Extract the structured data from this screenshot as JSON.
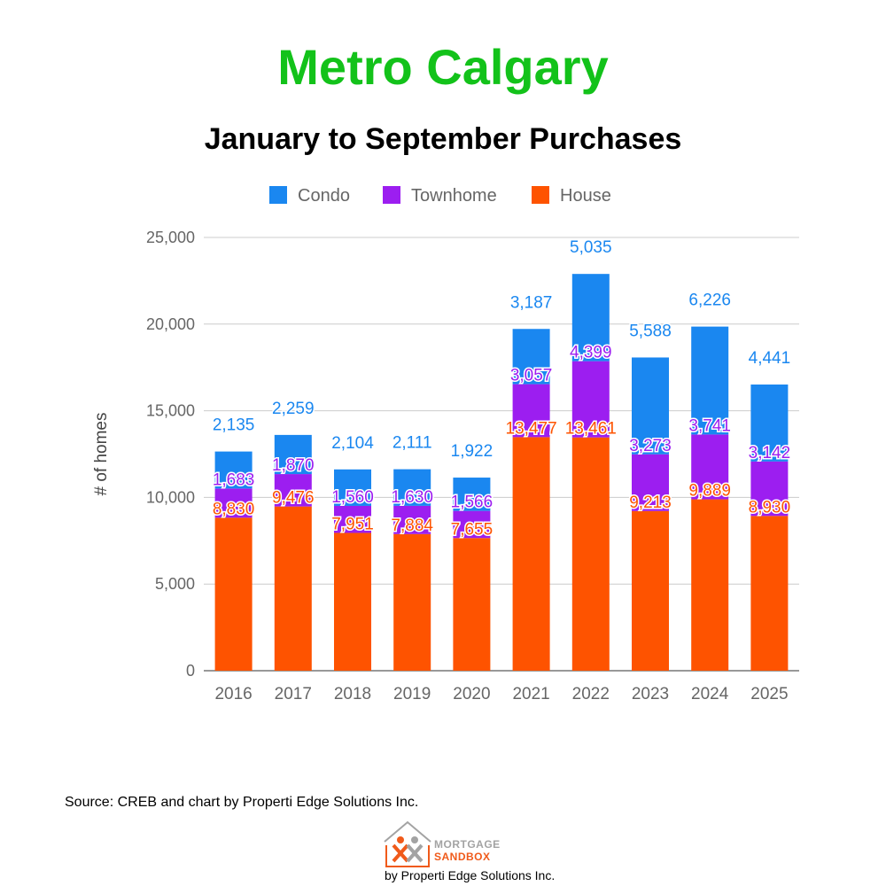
{
  "title": "Metro Calgary",
  "subtitle": "January to September Purchases",
  "source": "Source: CREB and chart by Properti Edge Solutions Inc.",
  "logo": {
    "line1": "MORTGAGE",
    "line2": "SANDBOX",
    "byline": "by Properti Edge Solutions Inc."
  },
  "colors": {
    "condo": "#1a87f0",
    "townhome": "#9c1ef0",
    "house": "#fe5300",
    "title": "#13c21a"
  },
  "chart_data": {
    "type": "bar",
    "stacked": true,
    "title": "January to September Purchases",
    "xlabel": "",
    "ylabel": "# of homes",
    "ylim": [
      0,
      25000
    ],
    "yticks": [
      0,
      5000,
      10000,
      15000,
      20000,
      25000
    ],
    "ytick_labels": [
      "0",
      "5,000",
      "10,000",
      "15,000",
      "20,000",
      "25,000"
    ],
    "grid": true,
    "legend": "top-center",
    "categories": [
      "2016",
      "2017",
      "2018",
      "2019",
      "2020",
      "2021",
      "2022",
      "2023",
      "2024",
      "2025"
    ],
    "series": [
      {
        "name": "House",
        "key": "house",
        "values": [
          8830,
          9476,
          7951,
          7884,
          7655,
          13477,
          13461,
          9213,
          9889,
          8930
        ],
        "labels": [
          "8,830",
          "9,476",
          "7,951",
          "7,884",
          "7,655",
          "13,477",
          "13,461",
          "9,213",
          "9,889",
          "8,930"
        ]
      },
      {
        "name": "Townhome",
        "key": "townhome",
        "values": [
          1683,
          1870,
          1560,
          1630,
          1566,
          3057,
          4399,
          3273,
          3741,
          3142
        ],
        "labels": [
          "1,683",
          "1,870",
          "1,560",
          "1,630",
          "1,566",
          "3,057",
          "4,399",
          "3,273",
          "3,741",
          "3,142"
        ]
      },
      {
        "name": "Condo",
        "key": "condo",
        "values": [
          2135,
          2259,
          2104,
          2111,
          1922,
          3187,
          5035,
          5588,
          6226,
          4441
        ],
        "labels": [
          "2,135",
          "2,259",
          "2,104",
          "2,111",
          "1,922",
          "3,187",
          "5,035",
          "5,588",
          "6,226",
          "4,441"
        ]
      }
    ],
    "legend_order": [
      "Condo",
      "Townhome",
      "House"
    ]
  }
}
